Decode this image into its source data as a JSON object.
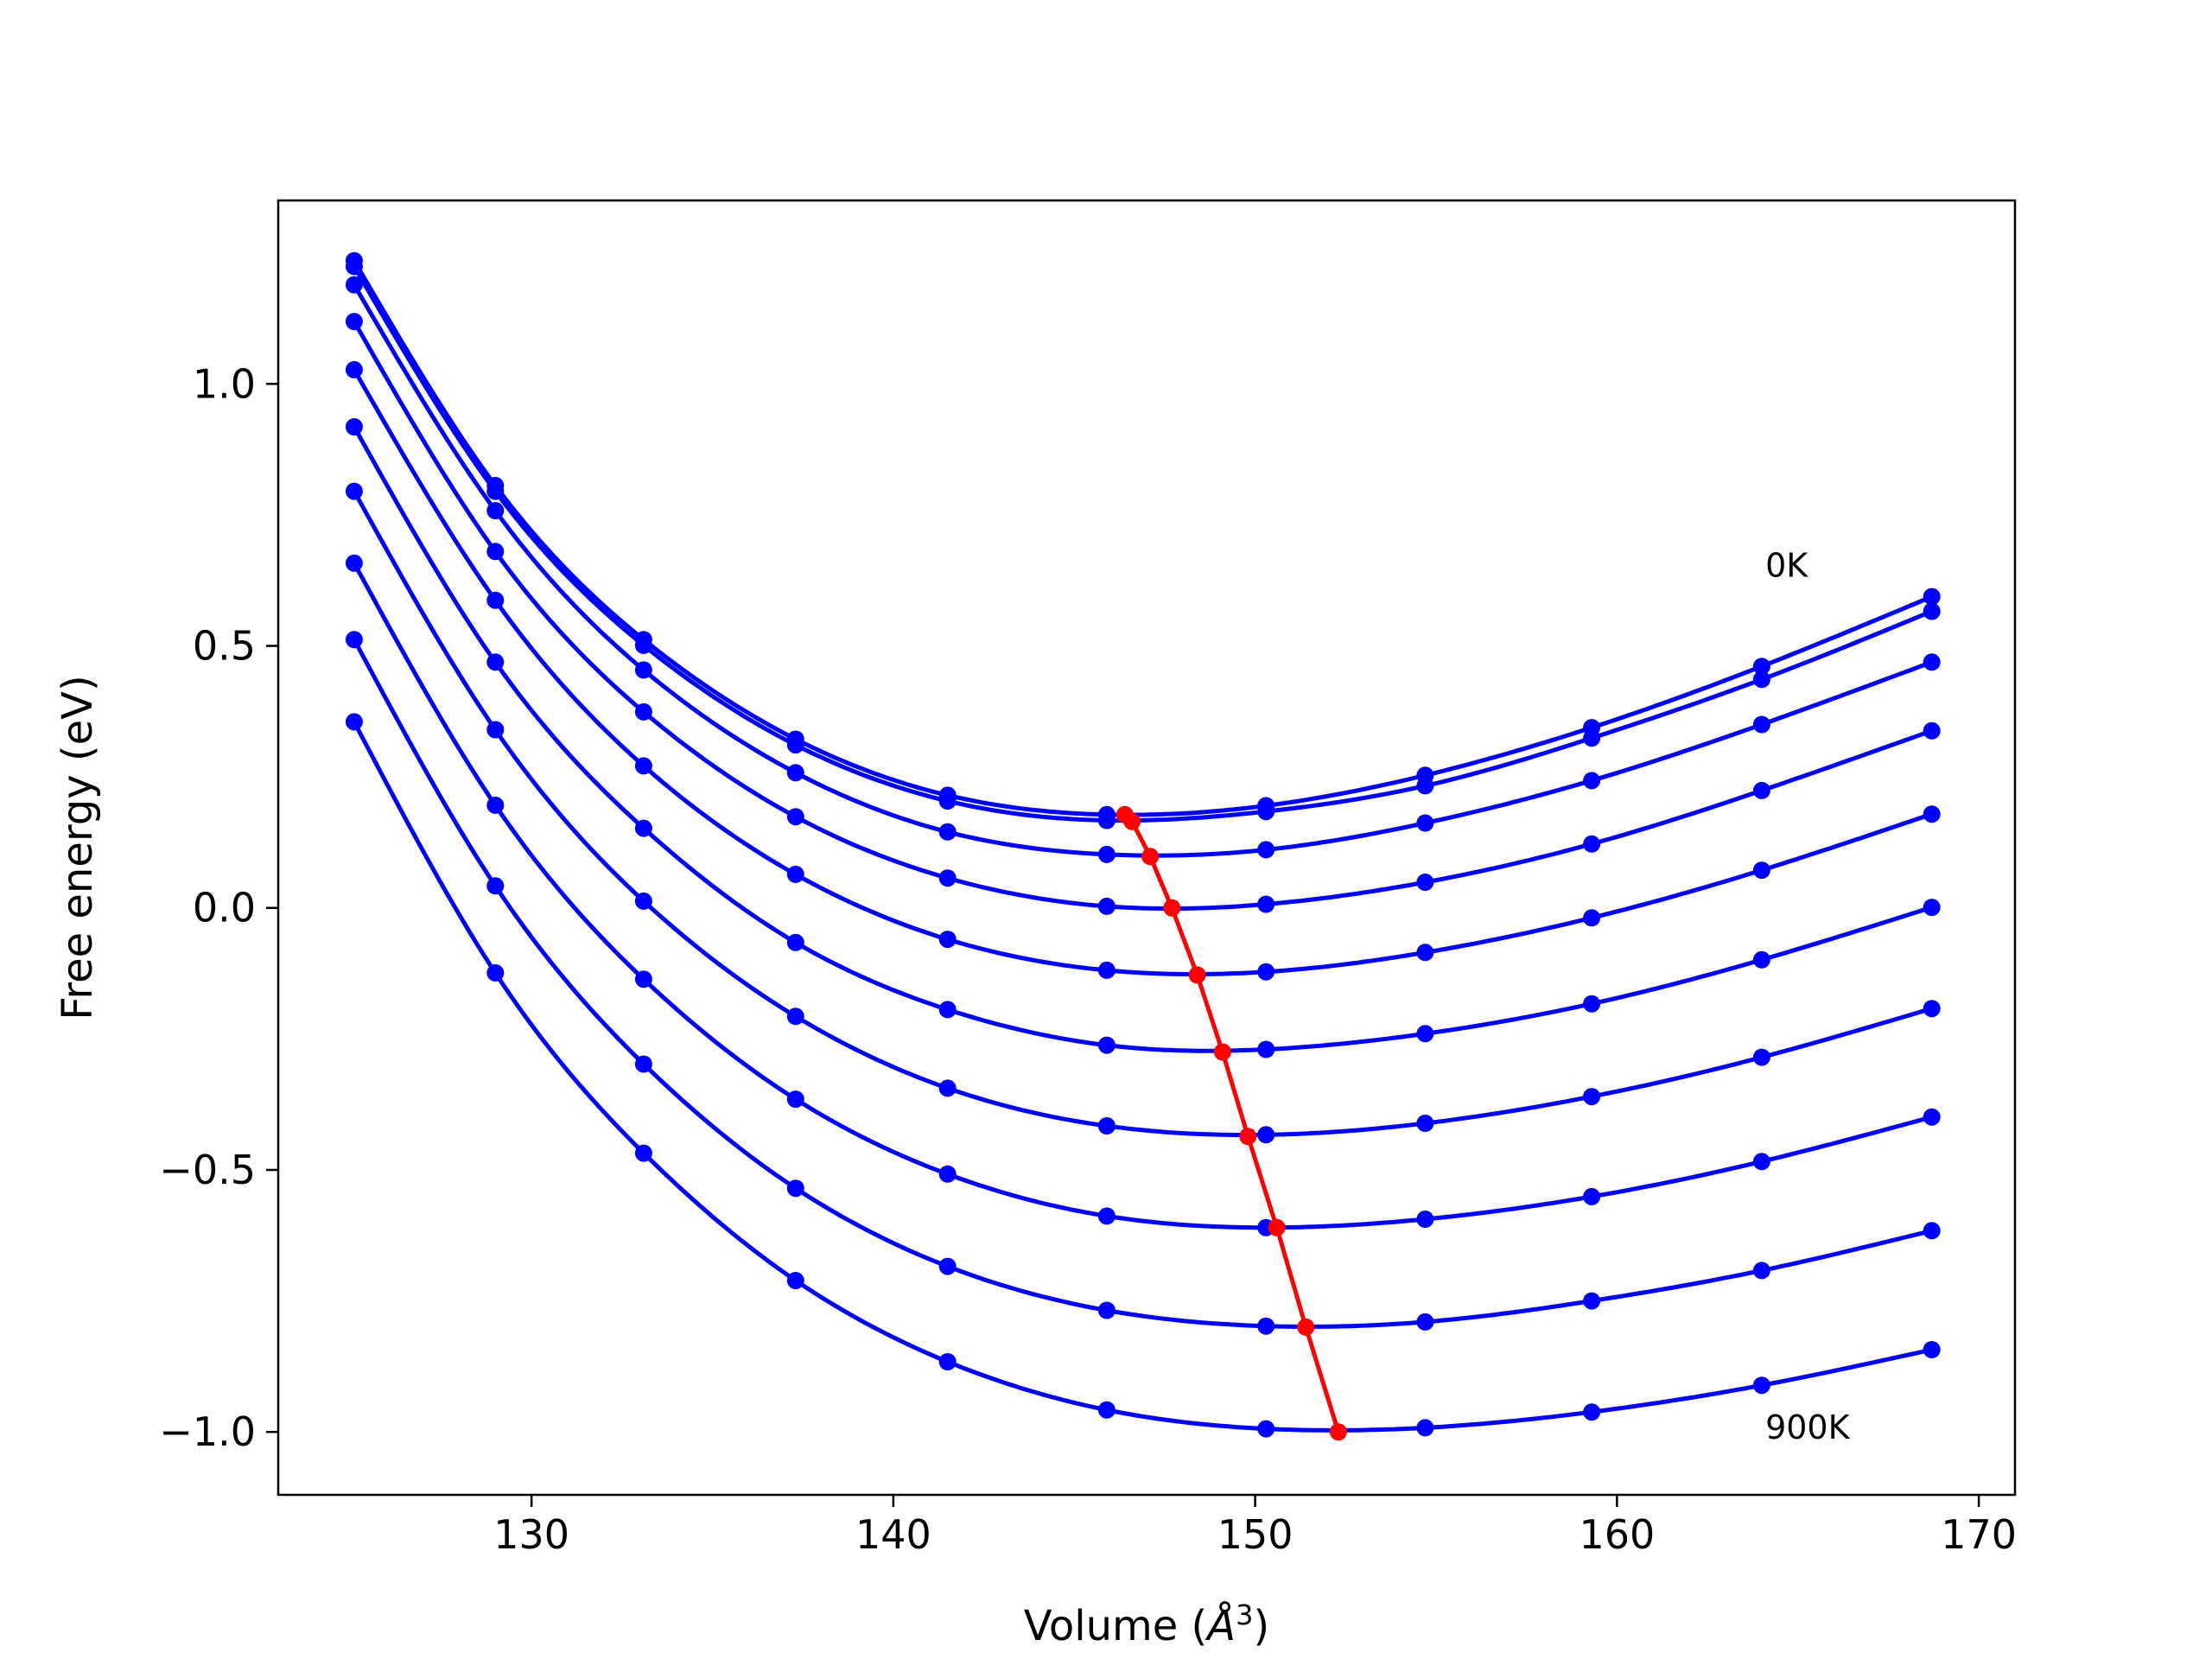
{
  "chart_data": {
    "type": "line",
    "title": "",
    "xlabel": "Volume (Å³)",
    "xlabel_base": "Volume (",
    "xlabel_unit": "Å",
    "xlabel_sup": "3",
    "xlabel_close": ")",
    "ylabel": "Free energy (eV)",
    "xlim": [
      123.0,
      171.0
    ],
    "ylim": [
      -1.12,
      1.35
    ],
    "xticks": [
      130,
      140,
      150,
      160,
      170
    ],
    "xtick_labels": [
      "130",
      "140",
      "150",
      "160",
      "170"
    ],
    "yticks": [
      -1.0,
      -0.5,
      0.0,
      0.5,
      1.0
    ],
    "ytick_labels": [
      "−1.0",
      "−0.5",
      "0.0",
      "0.5",
      "1.0"
    ],
    "grid": false,
    "series_color": "#0000ff",
    "min_path_color": "#ff0000",
    "x": [
      125.1,
      129.0,
      133.1,
      137.3,
      141.5,
      145.9,
      150.3,
      154.7,
      159.3,
      164.0,
      168.7
    ],
    "series": [
      {
        "values": [
          1.235,
          0.806,
          0.512,
          0.322,
          0.215,
          0.178,
          0.195,
          0.253,
          0.344,
          0.461,
          0.594
        ]
      },
      {
        "values": [
          1.224,
          0.795,
          0.501,
          0.311,
          0.204,
          0.167,
          0.184,
          0.233,
          0.324,
          0.436,
          0.566
        ]
      },
      {
        "values": [
          1.189,
          0.758,
          0.454,
          0.258,
          0.145,
          0.102,
          0.111,
          0.162,
          0.243,
          0.35,
          0.469
        ]
      },
      {
        "values": [
          1.119,
          0.68,
          0.374,
          0.174,
          0.057,
          0.003,
          0.007,
          0.049,
          0.122,
          0.224,
          0.338
        ]
      },
      {
        "values": [
          1.027,
          0.587,
          0.271,
          0.064,
          -0.06,
          -0.119,
          -0.122,
          -0.085,
          -0.019,
          0.072,
          0.179
        ]
      },
      {
        "values": [
          0.918,
          0.469,
          0.152,
          -0.066,
          -0.194,
          -0.262,
          -0.27,
          -0.24,
          -0.183,
          -0.099,
          0.001
        ]
      },
      {
        "values": [
          0.795,
          0.34,
          0.013,
          -0.207,
          -0.344,
          -0.416,
          -0.433,
          -0.411,
          -0.36,
          -0.285,
          -0.192
        ]
      },
      {
        "values": [
          0.658,
          0.196,
          -0.136,
          -0.365,
          -0.508,
          -0.588,
          -0.61,
          -0.594,
          -0.551,
          -0.484,
          -0.399
        ]
      },
      {
        "values": [
          0.512,
          0.042,
          -0.298,
          -0.535,
          -0.684,
          -0.768,
          -0.798,
          -0.79,
          -0.75,
          -0.692,
          -0.616
        ]
      },
      {
        "values": [
          0.355,
          -0.124,
          -0.468,
          -0.711,
          -0.866,
          -0.958,
          -0.994,
          -0.992,
          -0.962,
          -0.911,
          -0.843
        ]
      }
    ],
    "minimum_path": {
      "x": [
        146.4,
        146.6,
        147.1,
        147.7,
        148.4,
        149.1,
        149.8,
        150.6,
        151.4,
        152.3
      ],
      "y": [
        0.178,
        0.165,
        0.098,
        0.0,
        -0.128,
        -0.275,
        -0.436,
        -0.61,
        -0.8,
        -1.0
      ]
    },
    "annotations": [
      {
        "text": "0K",
        "x": 164.1,
        "y": 0.655
      },
      {
        "text": "900K",
        "x": 164.1,
        "y": -0.99
      }
    ]
  }
}
